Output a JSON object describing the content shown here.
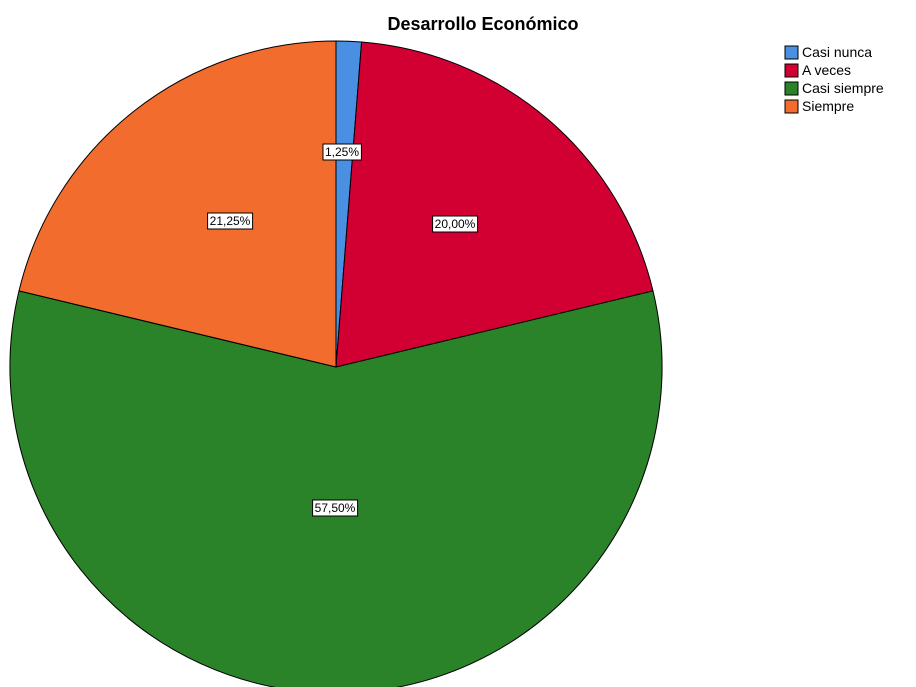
{
  "chart_data": {
    "type": "pie",
    "title": "Desarrollo Económico",
    "categories": [
      "Casi nunca",
      "A veces",
      "Casi siempre",
      "Siempre"
    ],
    "values": [
      1.25,
      20.0,
      57.5,
      21.25
    ],
    "data_labels": [
      "1,25%",
      "20,00%",
      "57,50%",
      "21,25%"
    ],
    "colors": [
      "#4a90e2",
      "#d20032",
      "#2a8229",
      "#f26c2e"
    ],
    "unit": "%",
    "start_angle_deg": 0,
    "direction": "clockwise",
    "legend_position": "top-right"
  }
}
